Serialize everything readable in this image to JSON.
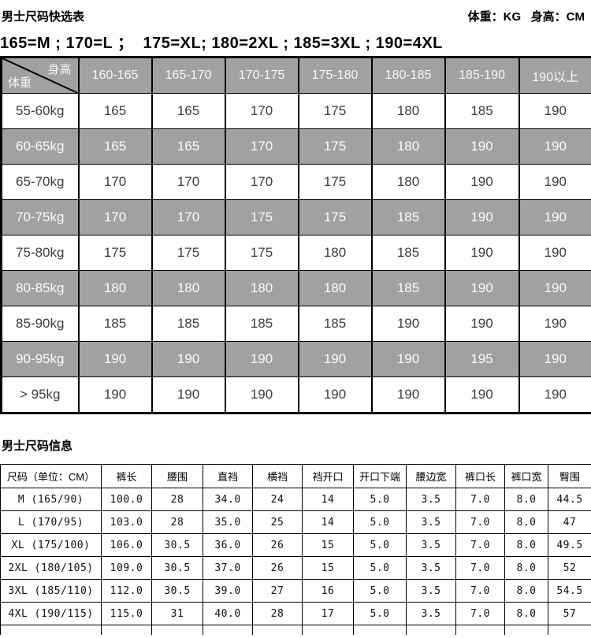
{
  "header": {
    "title": "男士尺码快选表",
    "units_note": "体重：KG   身高：CM",
    "size_mapping": "165=M ; 170=L ；  175=XL; 180=2XL ; 185=3XL ; 190=4XL"
  },
  "quick_table": {
    "corner": {
      "top_label": "身高",
      "bottom_label": "体重"
    },
    "columns": [
      "160-165",
      "165-170",
      "170-175",
      "175-180",
      "180-185",
      "185-190",
      "190以上"
    ],
    "rows": [
      {
        "label": "55-60kg",
        "values": [
          "165",
          "165",
          "170",
          "175",
          "180",
          "185",
          "190"
        ]
      },
      {
        "label": "60-65kg",
        "values": [
          "165",
          "165",
          "170",
          "175",
          "180",
          "190",
          "190"
        ]
      },
      {
        "label": "65-70kg",
        "values": [
          "170",
          "170",
          "170",
          "175",
          "180",
          "190",
          "190"
        ]
      },
      {
        "label": "70-75kg",
        "values": [
          "170",
          "170",
          "175",
          "175",
          "185",
          "190",
          "190"
        ]
      },
      {
        "label": "75-80kg",
        "values": [
          "175",
          "175",
          "175",
          "180",
          "185",
          "190",
          "190"
        ]
      },
      {
        "label": "80-85kg",
        "values": [
          "180",
          "180",
          "180",
          "180",
          "185",
          "190",
          "190"
        ]
      },
      {
        "label": "85-90kg",
        "values": [
          "185",
          "185",
          "185",
          "185",
          "190",
          "190",
          "190"
        ]
      },
      {
        "label": "90-95kg",
        "values": [
          "190",
          "190",
          "190",
          "190",
          "190",
          "195",
          "190"
        ]
      },
      {
        "label": "> 95kg",
        "values": [
          "190",
          "190",
          "190",
          "190",
          "190",
          "190",
          "190"
        ]
      }
    ]
  },
  "info_table": {
    "title": "男士尺码信息",
    "columns": [
      "尺码（单位：CM）",
      "裤长",
      "腰围",
      "直裆",
      "横裆",
      "裆开口",
      "开口下端",
      "腰边宽",
      "裤口长",
      "裤口宽",
      "臀围"
    ],
    "rows": [
      {
        "label": "M  (165/90)",
        "values": [
          "100.0",
          "28",
          "34.0",
          "24",
          "14",
          "5.0",
          "3.5",
          "7.0",
          "8.0",
          "44.5"
        ]
      },
      {
        "label": "L  (170/95)",
        "values": [
          "103.0",
          "28",
          "35.0",
          "25",
          "14",
          "5.0",
          "3.5",
          "7.0",
          "8.0",
          "47"
        ]
      },
      {
        "label": "XL  (175/100)",
        "values": [
          "106.0",
          "30.5",
          "36.0",
          "26",
          "15",
          "5.0",
          "3.5",
          "7.0",
          "8.0",
          "49.5"
        ]
      },
      {
        "label": "2XL  (180/105)",
        "values": [
          "109.0",
          "30.5",
          "37.0",
          "26",
          "15",
          "5.0",
          "3.5",
          "7.0",
          "8.0",
          "52"
        ]
      },
      {
        "label": "3XL  (185/110)",
        "values": [
          "112.0",
          "30.5",
          "39.0",
          "27",
          "16",
          "5.0",
          "3.5",
          "7.0",
          "8.0",
          "54.5"
        ]
      },
      {
        "label": "4XL  (190/115)",
        "values": [
          "115.0",
          "31",
          "40.0",
          "28",
          "17",
          "5.0",
          "3.5",
          "7.0",
          "8.0",
          "57"
        ]
      }
    ]
  }
}
